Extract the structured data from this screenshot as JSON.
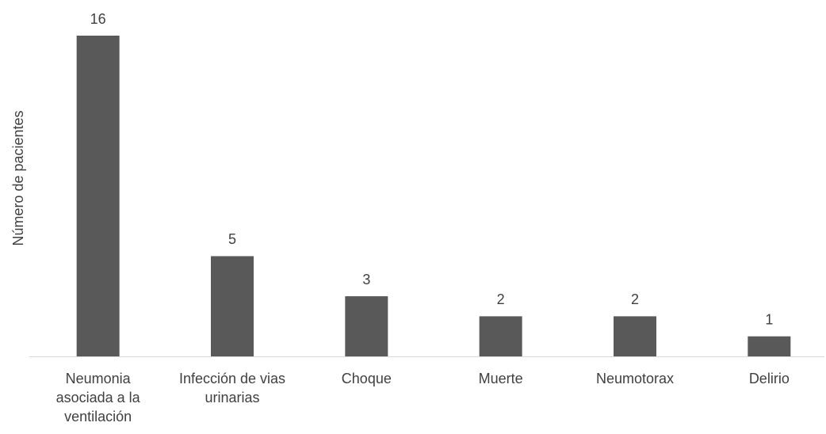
{
  "chart_data": {
    "type": "bar",
    "y_label": "Número de pacientes",
    "categories": [
      "Neumonia asociada a la ventilación",
      "Infección de vias urinarias",
      "Choque",
      "Muerte",
      "Neumotorax",
      "Delirio"
    ],
    "values": [
      16,
      5,
      3,
      2,
      2,
      1
    ],
    "color": "#595959"
  }
}
